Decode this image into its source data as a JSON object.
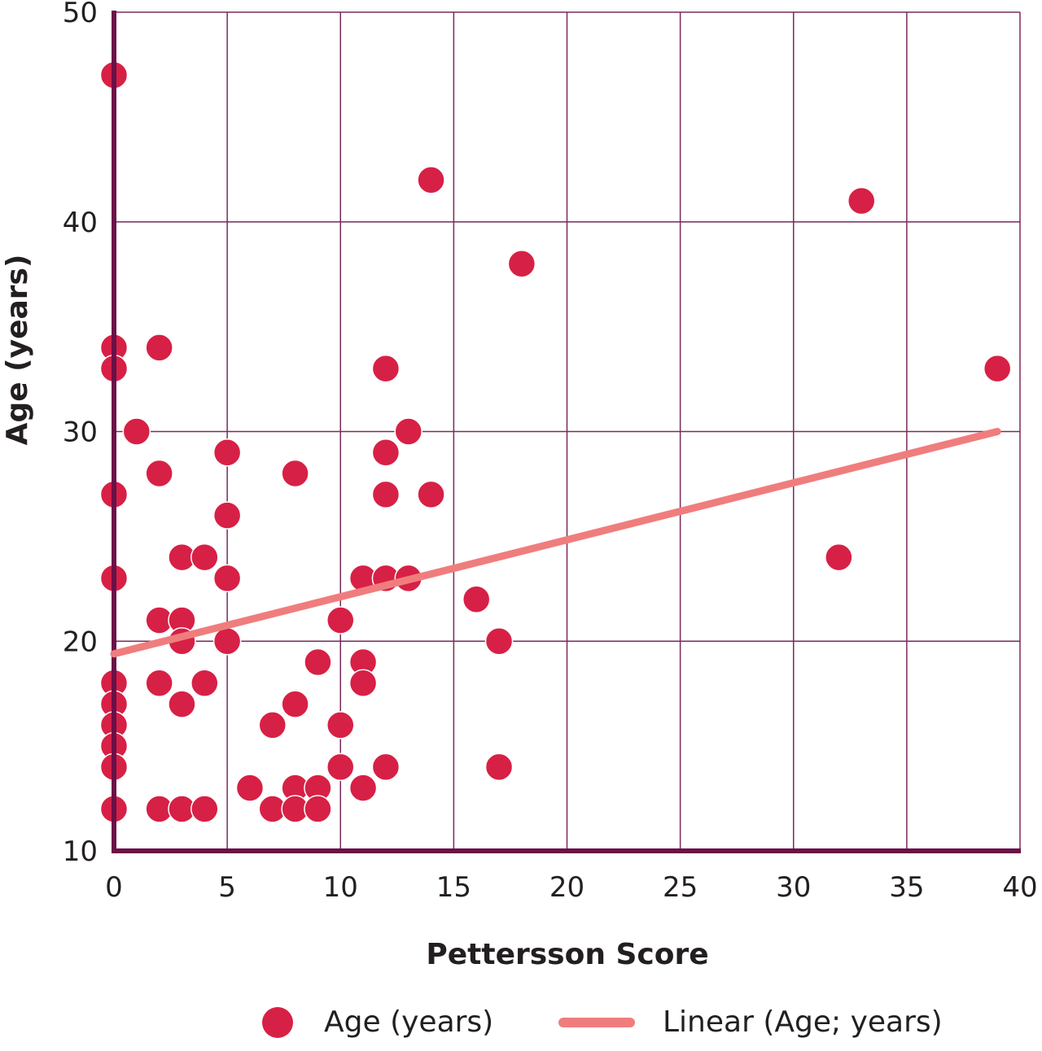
{
  "chart_data": {
    "type": "scatter",
    "title": "",
    "xlabel": "Pettersson Score",
    "ylabel": "Age (years)",
    "xlim": [
      0,
      40
    ],
    "ylim": [
      10,
      50
    ],
    "xticks": [
      0,
      5,
      10,
      15,
      20,
      25,
      30,
      35,
      40
    ],
    "yticks": [
      10,
      20,
      30,
      40,
      50
    ],
    "grid": true,
    "legend_position": "bottom",
    "series": [
      {
        "name": "Age (years)",
        "type": "scatter",
        "color": "#d72045",
        "points": [
          [
            0,
            47
          ],
          [
            0,
            34
          ],
          [
            0,
            33
          ],
          [
            0,
            27
          ],
          [
            0,
            23
          ],
          [
            0,
            18
          ],
          [
            0,
            17
          ],
          [
            0,
            16
          ],
          [
            0,
            15
          ],
          [
            0,
            14
          ],
          [
            0,
            12
          ],
          [
            1,
            30
          ],
          [
            2,
            34
          ],
          [
            2,
            28
          ],
          [
            2,
            21
          ],
          [
            2,
            18
          ],
          [
            2,
            12
          ],
          [
            3,
            24
          ],
          [
            3,
            21
          ],
          [
            3,
            20
          ],
          [
            3,
            17
          ],
          [
            3,
            12
          ],
          [
            4,
            24
          ],
          [
            4,
            18
          ],
          [
            4,
            12
          ],
          [
            5,
            29
          ],
          [
            5,
            26
          ],
          [
            5,
            23
          ],
          [
            5,
            20
          ],
          [
            6,
            13
          ],
          [
            7,
            16
          ],
          [
            7,
            12
          ],
          [
            8,
            28
          ],
          [
            8,
            17
          ],
          [
            8,
            13
          ],
          [
            8,
            12
          ],
          [
            9,
            19
          ],
          [
            9,
            13
          ],
          [
            9,
            12
          ],
          [
            10,
            21
          ],
          [
            10,
            16
          ],
          [
            10,
            14
          ],
          [
            11,
            23
          ],
          [
            11,
            19
          ],
          [
            11,
            18
          ],
          [
            11,
            13
          ],
          [
            12,
            33
          ],
          [
            12,
            29
          ],
          [
            12,
            27
          ],
          [
            12,
            23
          ],
          [
            12,
            14
          ],
          [
            13,
            30
          ],
          [
            13,
            23
          ],
          [
            14,
            42
          ],
          [
            14,
            27
          ],
          [
            16,
            22
          ],
          [
            17,
            20
          ],
          [
            17,
            14
          ],
          [
            18,
            38
          ],
          [
            32,
            24
          ],
          [
            33,
            41
          ],
          [
            39,
            33
          ]
        ]
      },
      {
        "name": "Linear (Age; years)",
        "type": "line",
        "color": "#f07d7d",
        "points": [
          [
            0,
            19.4
          ],
          [
            39,
            30.0
          ]
        ]
      }
    ]
  },
  "legend": {
    "items": [
      {
        "label": "Age (years)",
        "color": "#d72045",
        "marker": "circle"
      },
      {
        "label": "Linear (Age; years)",
        "color": "#f07d7d",
        "marker": "line"
      }
    ]
  },
  "colors": {
    "axis": "#6b1048",
    "grid": "#7a2a5c",
    "text": "#231f20"
  }
}
